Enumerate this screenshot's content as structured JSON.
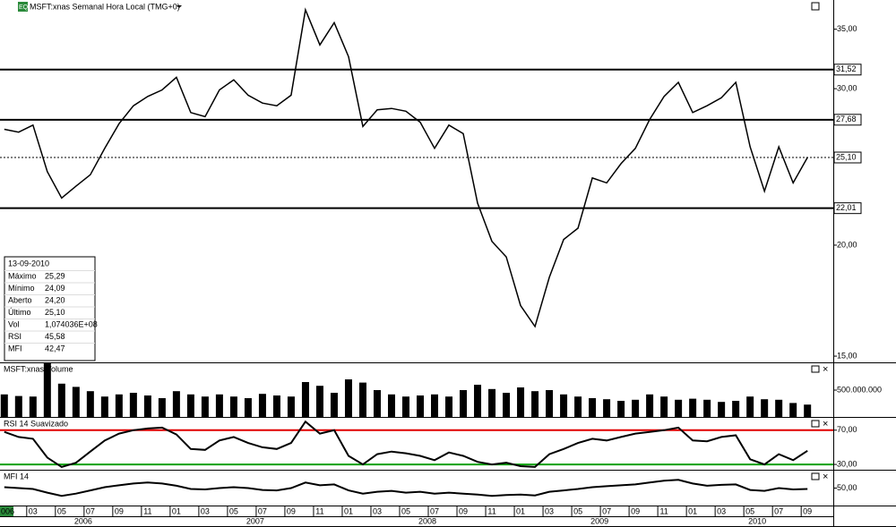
{
  "header": {
    "icon": "EQ",
    "title": "MSFT:xnas Semanal Hora Local (TMG+0)"
  },
  "chart_data": [
    {
      "type": "line",
      "title": "MSFT:xnas Semanal Hora Local (TMG+0)",
      "log_scale": true,
      "color": "#000000",
      "x": [
        0,
        1,
        2,
        3,
        4,
        5,
        6,
        7,
        8,
        9,
        10,
        11,
        12,
        13,
        14,
        15,
        16,
        17,
        18,
        19,
        20,
        21,
        22,
        23,
        24,
        25,
        26,
        27,
        28,
        29,
        30,
        31,
        32,
        33,
        34,
        35,
        36,
        37,
        38,
        39,
        40,
        41,
        42,
        43,
        44,
        45,
        46,
        47,
        48,
        49,
        50,
        51,
        52,
        53,
        54,
        55,
        56
      ],
      "values": [
        27.0,
        26.8,
        27.3,
        24.2,
        22.6,
        23.3,
        24.0,
        25.7,
        27.4,
        28.7,
        29.4,
        29.9,
        30.9,
        28.2,
        27.9,
        29.9,
        30.7,
        29.5,
        28.9,
        28.7,
        29.5,
        36.8,
        33.6,
        35.6,
        32.6,
        27.2,
        28.4,
        28.5,
        28.3,
        27.5,
        25.7,
        27.3,
        26.7,
        22.3,
        20.2,
        19.4,
        17.1,
        16.2,
        18.4,
        20.3,
        20.9,
        23.8,
        23.5,
        24.7,
        25.7,
        27.7,
        29.4,
        30.5,
        28.2,
        28.7,
        29.3,
        30.5,
        25.8,
        23.0,
        25.8,
        23.5,
        25.1
      ],
      "xlim": [
        -0.3,
        57.8
      ],
      "ylim": [
        14.76,
        37.75
      ],
      "yticks": [
        {
          "value": 15,
          "label": "15,00"
        },
        {
          "value": 20,
          "label": "20,00"
        },
        {
          "value": 30,
          "label": "30,00"
        },
        {
          "value": 35,
          "label": "35,00"
        }
      ],
      "levels": [
        {
          "value": 31.52,
          "label": "31,52",
          "style": "solid"
        },
        {
          "value": 27.68,
          "label": "27,68",
          "style": "solid"
        },
        {
          "value": 25.1,
          "label": "25,10",
          "style": "dotted"
        },
        {
          "value": 22.01,
          "label": "22,01",
          "style": "solid"
        }
      ]
    },
    {
      "type": "bar",
      "title": "MSFT:xnas Volume",
      "color": "#000000",
      "values": [
        420000000,
        390000000,
        380000000,
        1000000000,
        620000000,
        560000000,
        480000000,
        380000000,
        420000000,
        450000000,
        400000000,
        350000000,
        480000000,
        420000000,
        380000000,
        420000000,
        380000000,
        350000000,
        430000000,
        400000000,
        380000000,
        650000000,
        580000000,
        450000000,
        700000000,
        640000000,
        500000000,
        420000000,
        380000000,
        400000000,
        420000000,
        380000000,
        500000000,
        600000000,
        520000000,
        450000000,
        550000000,
        480000000,
        500000000,
        420000000,
        380000000,
        350000000,
        330000000,
        300000000,
        320000000,
        420000000,
        380000000,
        320000000,
        340000000,
        320000000,
        280000000,
        300000000,
        380000000,
        330000000,
        320000000,
        260000000,
        230000000
      ],
      "ylim": [
        0,
        1000000000
      ],
      "yticks": [
        {
          "value": 500000000,
          "label": "500.000.000"
        }
      ]
    },
    {
      "type": "line",
      "title": "RSI 14 Suavizado",
      "color": "#000000",
      "values": [
        68,
        62,
        60,
        38,
        27,
        32,
        45,
        58,
        66,
        70,
        72,
        73,
        65,
        48,
        47,
        58,
        62,
        55,
        50,
        48,
        55,
        80,
        66,
        70,
        40,
        30,
        42,
        45,
        43,
        40,
        35,
        44,
        40,
        33,
        30,
        32,
        28,
        27,
        42,
        48,
        55,
        60,
        58,
        62,
        66,
        68,
        70,
        73,
        58,
        57,
        62,
        64,
        36,
        30,
        42,
        35,
        46
      ],
      "ylim": [
        23.8,
        84.4
      ],
      "yticks": [
        {
          "value": 70,
          "label": "70,00"
        },
        {
          "value": 30,
          "label": "30,00"
        }
      ],
      "tick_line_colors": [
        "#e00000",
        "#00a000"
      ]
    },
    {
      "type": "line",
      "title": "MFI 14",
      "color": "#000000",
      "values": [
        52,
        50,
        48,
        40,
        33,
        38,
        45,
        52,
        56,
        60,
        62,
        60,
        55,
        48,
        47,
        50,
        52,
        50,
        46,
        45,
        50,
        62,
        56,
        58,
        45,
        38,
        42,
        44,
        40,
        42,
        38,
        40,
        38,
        36,
        33,
        35,
        36,
        34,
        42,
        45,
        48,
        52,
        54,
        56,
        58,
        62,
        66,
        68,
        60,
        55,
        57,
        58,
        46,
        44,
        50,
        47,
        48
      ],
      "ylim": [
        12,
        88
      ],
      "yticks": [
        {
          "value": 50,
          "label": "50,00"
        }
      ]
    }
  ],
  "date_axis": {
    "months": [
      {
        "value": 0,
        "label": "006"
      },
      {
        "value": 2,
        "label": "03"
      },
      {
        "value": 4,
        "label": "05"
      },
      {
        "value": 6,
        "label": "07"
      },
      {
        "value": 8,
        "label": "09"
      },
      {
        "value": 10,
        "label": "11"
      },
      {
        "value": 12,
        "label": "01"
      },
      {
        "value": 14,
        "label": "03"
      },
      {
        "value": 16,
        "label": "05"
      },
      {
        "value": 18,
        "label": "07"
      },
      {
        "value": 20,
        "label": "09"
      },
      {
        "value": 22,
        "label": "11"
      },
      {
        "value": 24,
        "label": "01"
      },
      {
        "value": 26,
        "label": "03"
      },
      {
        "value": 28,
        "label": "05"
      },
      {
        "value": 30,
        "label": "07"
      },
      {
        "value": 32,
        "label": "09"
      },
      {
        "value": 34,
        "label": "11"
      },
      {
        "value": 36,
        "label": "01"
      },
      {
        "value": 38,
        "label": "03"
      },
      {
        "value": 40,
        "label": "05"
      },
      {
        "value": 42,
        "label": "07"
      },
      {
        "value": 44,
        "label": "09"
      },
      {
        "value": 46,
        "label": "11"
      },
      {
        "value": 48,
        "label": "01"
      },
      {
        "value": 50,
        "label": "03"
      },
      {
        "value": 52,
        "label": "05"
      },
      {
        "value": 54,
        "label": "07"
      },
      {
        "value": 56,
        "label": "09"
      }
    ],
    "years": [
      {
        "value": 5.5,
        "label": "2006"
      },
      {
        "value": 17.5,
        "label": "2007"
      },
      {
        "value": 29.5,
        "label": "2008"
      },
      {
        "value": 41.5,
        "label": "2009"
      },
      {
        "value": 52.5,
        "label": "2010"
      }
    ]
  },
  "info_box": {
    "date": "13-09-2010",
    "rows": [
      [
        "Máximo",
        "25,29"
      ],
      [
        "Mínimo",
        "24,09"
      ],
      [
        "Aberto",
        "24,20"
      ],
      [
        "Último",
        "25,10"
      ],
      [
        "Vol",
        "1,074036E+08"
      ],
      [
        "RSI",
        "45,58"
      ],
      [
        "MFI",
        "42,47"
      ]
    ]
  }
}
